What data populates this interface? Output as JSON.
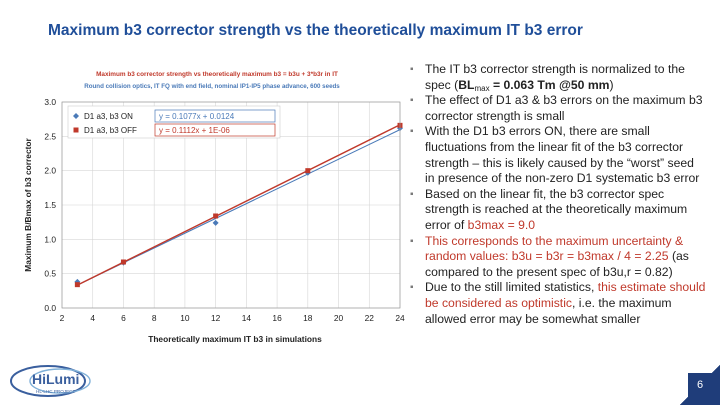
{
  "slide": {
    "title": "Maximum b3 corrector strength vs the theoretically maximum IT b3 error",
    "page_number": "6",
    "logo": {
      "name": "HiLumi",
      "subtitle": "HL-LHC PROJECT",
      "icon": "hilumi-logo-icon"
    }
  },
  "bullets": [
    {
      "parts": [
        {
          "t": "The IT b3 corrector strength is normalized to the spec ("
        },
        {
          "t": "BL",
          "style": "b"
        },
        {
          "t": "max",
          "style": "sub"
        },
        {
          "t": " = 0.063 Tm @50 mm",
          "style": "b"
        },
        {
          "t": ")"
        }
      ]
    },
    {
      "parts": [
        {
          "t": "The effect of D1 a3 & b3 errors on the maximum b3 corrector strength is small"
        }
      ]
    },
    {
      "parts": [
        {
          "t": "With the D1 b3 errors ON, there are small fluctuations from the linear fit of the b3 corrector strength – this is likely caused by the “worst” seed in presence of the non-zero D1 systematic b3 error"
        }
      ]
    },
    {
      "parts": [
        {
          "t": "Based on the linear fit, the b3 corrector spec strength is reached at the theoretically maximum error of "
        },
        {
          "t": "b3max = 9.0",
          "style": "hl"
        }
      ]
    },
    {
      "parts": [
        {
          "t": "This corresponds to the maximum uncertainty & random values: ",
          "style": "hl"
        },
        {
          "t": "b3u = b3r = b3max / 4 = 2.25",
          "style": "hl"
        },
        {
          "t": " (as compared to the present spec of b3u,r = 0.82)"
        }
      ]
    },
    {
      "parts": [
        {
          "t": "Due to the still limited statistics, "
        },
        {
          "t": "this estimate should be considered as optimistic",
          "style": "hl"
        },
        {
          "t": ", i.e. the maximum allowed error may be somewhat smaller"
        }
      ]
    }
  ],
  "chart_data": {
    "type": "scatter",
    "title": "Maximum b3 corrector strength vs theoretically maximum b3 = b3u + 3*b3r in IT",
    "subtitle": "Round collision optics, IT FQ with end field, nominal IP1-IP5 phase advance, 600 seeds",
    "xlabel": "Theoretically maximum IT b3 in simulations",
    "ylabel": "Maximum B/Bmax of b3 corrector",
    "xlim": [
      2,
      24
    ],
    "ylim": [
      0.0,
      3.0
    ],
    "xticks": [
      "2",
      "4",
      "6",
      "8",
      "10",
      "12",
      "14",
      "16",
      "18",
      "20",
      "22",
      "24"
    ],
    "yticks": [
      "0.0",
      "0.5",
      "1.0",
      "1.5",
      "2.0",
      "2.5",
      "3.0"
    ],
    "grid": true,
    "legend": "top-left",
    "series": [
      {
        "name": "D1 a3, b3 ON",
        "color": "#4a7ab8",
        "marker": "diamond",
        "fit": "y = 0.1077x + 0.0124",
        "slope": 0.1077,
        "intercept": 0.0124,
        "x": [
          3,
          6,
          12,
          18,
          24
        ],
        "y": [
          0.38,
          0.66,
          1.24,
          1.97,
          2.62
        ]
      },
      {
        "name": "D1 a3, b3 OFF",
        "color": "#c0392b",
        "marker": "square",
        "fit": "y = 0.1112x + 1E-06",
        "slope": 0.1112,
        "intercept": 1e-06,
        "x": [
          3,
          6,
          12,
          18,
          24
        ],
        "y": [
          0.34,
          0.67,
          1.34,
          2.0,
          2.66
        ]
      }
    ]
  }
}
